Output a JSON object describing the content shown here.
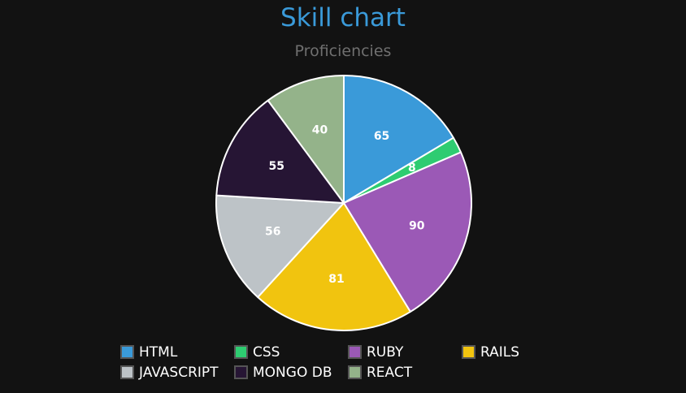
{
  "chart_data": {
    "type": "pie",
    "title": "Skill chart",
    "subtitle": "Proficiencies",
    "categories": [
      "HTML",
      "CSS",
      "RUBY",
      "RAILS",
      "JAVASCRIPT",
      "MONGO DB",
      "REACT"
    ],
    "values": [
      65,
      8,
      90,
      81,
      56,
      55,
      40
    ],
    "colors": [
      "#3a9ad9",
      "#2ecc71",
      "#9b59b6",
      "#f1c40f",
      "#bdc3c7",
      "#261534",
      "#94b38a"
    ],
    "legend_position": "bottom",
    "background": "#121212"
  }
}
